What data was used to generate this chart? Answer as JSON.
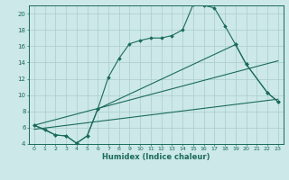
{
  "xlabel": "Humidex (Indice chaleur)",
  "bg_color": "#cce8e8",
  "grid_color": "#aacccc",
  "line_color": "#1a6b5a",
  "xlim": [
    -0.5,
    23.5
  ],
  "ylim": [
    4,
    21
  ],
  "yticks": [
    4,
    6,
    8,
    10,
    12,
    14,
    16,
    18,
    20
  ],
  "xticks": [
    0,
    1,
    2,
    3,
    4,
    5,
    6,
    7,
    8,
    9,
    10,
    11,
    12,
    13,
    14,
    15,
    16,
    17,
    18,
    19,
    20,
    21,
    22,
    23
  ],
  "line1_x": [
    0,
    1,
    2,
    3,
    4,
    5,
    6,
    7,
    8,
    9,
    10,
    11,
    12,
    13,
    14,
    15,
    16,
    17,
    18,
    19,
    20,
    22,
    23
  ],
  "line1_y": [
    6.3,
    5.8,
    5.1,
    5.0,
    4.1,
    5.0,
    8.3,
    12.2,
    14.5,
    16.3,
    16.7,
    17.0,
    17.0,
    17.3,
    18.0,
    21.1,
    21.0,
    20.7,
    18.5,
    16.2,
    13.8,
    10.3,
    9.2
  ],
  "line2_x": [
    0,
    2,
    3,
    4,
    5,
    6,
    19,
    20,
    22,
    23
  ],
  "line2_y": [
    6.3,
    5.1,
    5.0,
    4.1,
    5.0,
    8.3,
    16.2,
    13.8,
    10.3,
    9.2
  ],
  "line3_x": [
    0,
    23
  ],
  "line3_y": [
    6.3,
    14.2
  ],
  "line4_x": [
    0,
    23
  ],
  "line4_y": [
    5.8,
    9.5
  ]
}
